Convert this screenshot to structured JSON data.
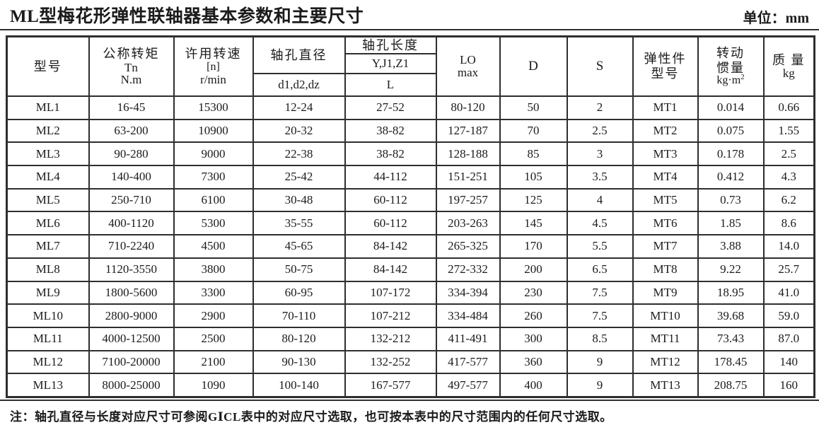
{
  "page": {
    "title": "ML型梅花形弹性联轴器基本参数和主要尺寸",
    "unit_label": "单位：mm",
    "note": "注：轴孔直径与长度对应尺寸可参阅GⅠCL表中的对应尺寸选取，也可按本表中的尺寸范围内的任何尺寸选取。"
  },
  "table": {
    "headers": {
      "model": "型号",
      "torque_title": "公称转矩",
      "torque_symbol": "Tn",
      "torque_unit": "N.m",
      "speed_title": "许用转速",
      "speed_symbol": "[n]",
      "speed_unit": "r/min",
      "bore_diameter_title": "轴孔直径",
      "bore_diameter_sub": "d1,d2,dz",
      "bore_length_title": "轴孔长度",
      "bore_length_sub1": "Y,J1,Z1",
      "bore_length_sub2": "L",
      "lo_line1": "LO",
      "lo_line2": "max",
      "d": "D",
      "s": "S",
      "elastic_line1": "弹性件",
      "elastic_line2": "型号",
      "inertia_line1": "转动",
      "inertia_line2": "惯量",
      "inertia_unit_base": "kg·m",
      "inertia_unit_sup": "2",
      "mass_line1": "质 量",
      "mass_unit": "kg"
    },
    "rows": [
      [
        "ML1",
        "16-45",
        "15300",
        "12-24",
        "27-52",
        "80-120",
        "50",
        "2",
        "MT1",
        "0.014",
        "0.66"
      ],
      [
        "ML2",
        "63-200",
        "10900",
        "20-32",
        "38-82",
        "127-187",
        "70",
        "2.5",
        "MT2",
        "0.075",
        "1.55"
      ],
      [
        "ML3",
        "90-280",
        "9000",
        "22-38",
        "38-82",
        "128-188",
        "85",
        "3",
        "MT3",
        "0.178",
        "2.5"
      ],
      [
        "ML4",
        "140-400",
        "7300",
        "25-42",
        "44-112",
        "151-251",
        "105",
        "3.5",
        "MT4",
        "0.412",
        "4.3"
      ],
      [
        "ML5",
        "250-710",
        "6100",
        "30-48",
        "60-112",
        "197-257",
        "125",
        "4",
        "MT5",
        "0.73",
        "6.2"
      ],
      [
        "ML6",
        "400-1120",
        "5300",
        "35-55",
        "60-112",
        "203-263",
        "145",
        "4.5",
        "MT6",
        "1.85",
        "8.6"
      ],
      [
        "ML7",
        "710-2240",
        "4500",
        "45-65",
        "84-142",
        "265-325",
        "170",
        "5.5",
        "MT7",
        "3.88",
        "14.0"
      ],
      [
        "ML8",
        "1120-3550",
        "3800",
        "50-75",
        "84-142",
        "272-332",
        "200",
        "6.5",
        "MT8",
        "9.22",
        "25.7"
      ],
      [
        "ML9",
        "1800-5600",
        "3300",
        "60-95",
        "107-172",
        "334-394",
        "230",
        "7.5",
        "MT9",
        "18.95",
        "41.0"
      ],
      [
        "ML10",
        "2800-9000",
        "2900",
        "70-110",
        "107-212",
        "334-484",
        "260",
        "7.5",
        "MT10",
        "39.68",
        "59.0"
      ],
      [
        "ML11",
        "4000-12500",
        "2500",
        "80-120",
        "132-212",
        "411-491",
        "300",
        "8.5",
        "MT11",
        "73.43",
        "87.0"
      ],
      [
        "ML12",
        "7100-20000",
        "2100",
        "90-130",
        "132-252",
        "417-577",
        "360",
        "9",
        "MT12",
        "178.45",
        "140"
      ],
      [
        "ML13",
        "8000-25000",
        "1090",
        "100-140",
        "167-577",
        "497-577",
        "400",
        "9",
        "MT13",
        "208.75",
        "160"
      ]
    ]
  }
}
